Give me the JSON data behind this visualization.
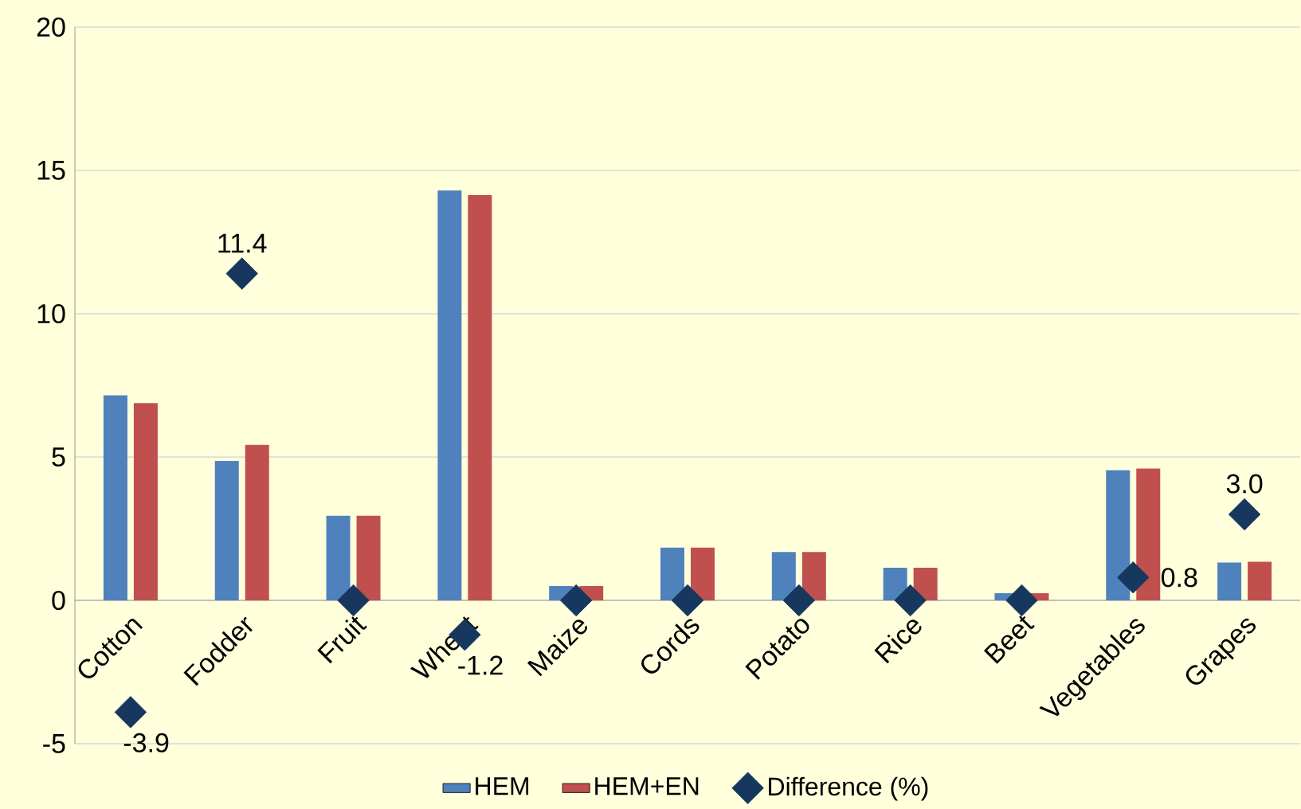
{
  "chart_data": {
    "type": "bar",
    "categories": [
      "Cotton",
      "Fodder",
      "Fruit",
      "Wheat",
      "Maize",
      "Cords",
      "Potato",
      "Rice",
      "Beet",
      "Vegetables",
      "Grapes"
    ],
    "series": [
      {
        "name": "HEM",
        "color": "#4f81bd",
        "values": [
          7.15,
          4.86,
          2.95,
          14.3,
          0.5,
          1.84,
          1.69,
          1.14,
          0.25,
          4.54,
          1.32
        ]
      },
      {
        "name": "HEM+EN",
        "color": "#c0504d",
        "values": [
          6.88,
          5.42,
          2.95,
          14.14,
          0.5,
          1.84,
          1.69,
          1.14,
          0.25,
          4.6,
          1.35
        ]
      },
      {
        "name": "Difference (%)",
        "type": "scatter",
        "color": "#17375e",
        "x": [
          "Cotton",
          "Fodder",
          "Fruit",
          "Wheat",
          "Maize",
          "Cords",
          "Potato",
          "Rice",
          "Beet",
          "Vegetables",
          "Grapes"
        ],
        "values": [
          -3.9,
          11.4,
          0,
          -1.2,
          0,
          0,
          0,
          0,
          0,
          0.8,
          3.0
        ],
        "value_labels": [
          "-3.9",
          "11.4",
          null,
          "-1.2",
          null,
          null,
          null,
          null,
          null,
          "0.8",
          "3.0"
        ]
      }
    ],
    "ylim": [
      -5,
      20
    ],
    "yticks": [
      -5,
      0,
      5,
      10,
      15,
      20
    ],
    "grid": "y",
    "legend": "bottom",
    "marker": "diamond"
  }
}
